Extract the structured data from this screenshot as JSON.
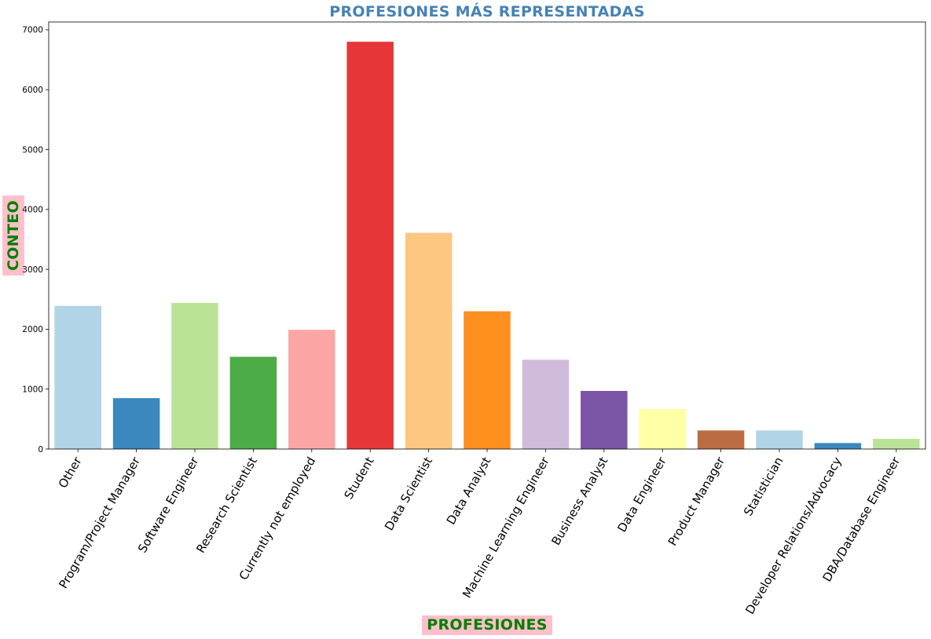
{
  "colors": {
    "title": "#4682b4",
    "axis_label_text": "#008000",
    "axis_label_bg": "#ffc0cb",
    "axis": "#000000",
    "tick_label": "#000000"
  },
  "chart_data": {
    "type": "bar",
    "title": "PROFESIONES MÁS REPRESENTADAS",
    "xlabel": "PROFESIONES",
    "ylabel": "CONTEO",
    "categories": [
      "Other",
      "Program/Project Manager",
      "Software Engineer",
      "Research Scientist",
      "Currently not employed",
      "Student",
      "Data Scientist",
      "Data Analyst",
      "Machine Learning Engineer",
      "Business Analyst",
      "Data Engineer",
      "Product Manager",
      "Statistician",
      "Developer Relations/Advocacy",
      "DBA/Database Engineer"
    ],
    "values": [
      2390,
      850,
      2440,
      1540,
      1990,
      6800,
      3610,
      2300,
      1490,
      970,
      670,
      310,
      310,
      100,
      170
    ],
    "bar_colors": [
      "#a6cee3",
      "#1f78b4",
      "#b2df8a",
      "#33a02c",
      "#fb9a99",
      "#e31a1c",
      "#fdbf6f",
      "#ff7f00",
      "#cab2d6",
      "#6a3d9a",
      "#ffff99",
      "#b15928",
      "#a6cee3",
      "#1f78b4",
      "#b2df8a"
    ],
    "bar_opacity": 0.88,
    "ylim": [
      0,
      7130
    ],
    "yticks": [
      0,
      1000,
      2000,
      3000,
      4000,
      5000,
      6000,
      7000
    ],
    "grid": false,
    "legend": "none"
  }
}
